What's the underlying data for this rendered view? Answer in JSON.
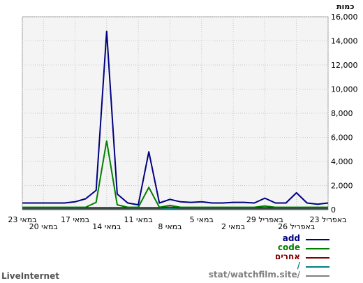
{
  "chart_data": {
    "type": "line",
    "ylabel": "כמות",
    "ylim": [
      0,
      16000
    ],
    "yticks": [
      "0",
      "2,000",
      "4,000",
      "6,000",
      "8,000",
      "10,000",
      "12,000",
      "14,000",
      "16,000"
    ],
    "x_tick_labels": [
      "23 באפריל",
      "26 באפריל",
      "29 באפריל",
      "2 במאי",
      "5 במאי",
      "8 במאי",
      "11 במאי",
      "14 במאי",
      "17 במאי",
      "20 במאי",
      "23 במאי"
    ],
    "grid": true,
    "legend_placement": "bottom-right",
    "series": [
      {
        "name": "add",
        "color": "#000080",
        "values": [
          550,
          550,
          550,
          550,
          550,
          650,
          900,
          1600,
          14800,
          1300,
          550,
          400,
          4800,
          550,
          850,
          650,
          600,
          650,
          550,
          550,
          600,
          600,
          550,
          950,
          550,
          550,
          1400,
          550,
          450,
          550
        ]
      },
      {
        "name": "code",
        "color": "#008000",
        "values": [
          200,
          200,
          200,
          200,
          200,
          200,
          200,
          600,
          5700,
          400,
          200,
          200,
          1850,
          200,
          350,
          200,
          200,
          200,
          200,
          200,
          200,
          200,
          200,
          300,
          200,
          200,
          200,
          200,
          200,
          200
        ]
      },
      {
        "name": "אחרים",
        "color": "#800000",
        "values": [
          150,
          150,
          150,
          150,
          150,
          150,
          150,
          150,
          150,
          150,
          150,
          150,
          150,
          150,
          200,
          150,
          150,
          150,
          150,
          150,
          150,
          150,
          150,
          150,
          150,
          150,
          150,
          150,
          150,
          150
        ]
      },
      {
        "name": "/",
        "color": "#008080",
        "values": [
          60,
          60,
          60,
          60,
          60,
          60,
          60,
          60,
          60,
          60,
          60,
          60,
          60,
          60,
          60,
          60,
          60,
          60,
          60,
          60,
          60,
          60,
          60,
          60,
          60,
          60,
          60,
          60,
          60,
          60
        ]
      },
      {
        "name": "stat/watchfilm.site/",
        "color": "#808080",
        "values": [
          20,
          20,
          20,
          20,
          20,
          20,
          20,
          20,
          20,
          20,
          20,
          20,
          20,
          20,
          20,
          20,
          20,
          20,
          20,
          20,
          20,
          20,
          20,
          20,
          20,
          20,
          20,
          20,
          20,
          20
        ]
      }
    ]
  },
  "footer": {
    "brand": "LiveInternet"
  }
}
